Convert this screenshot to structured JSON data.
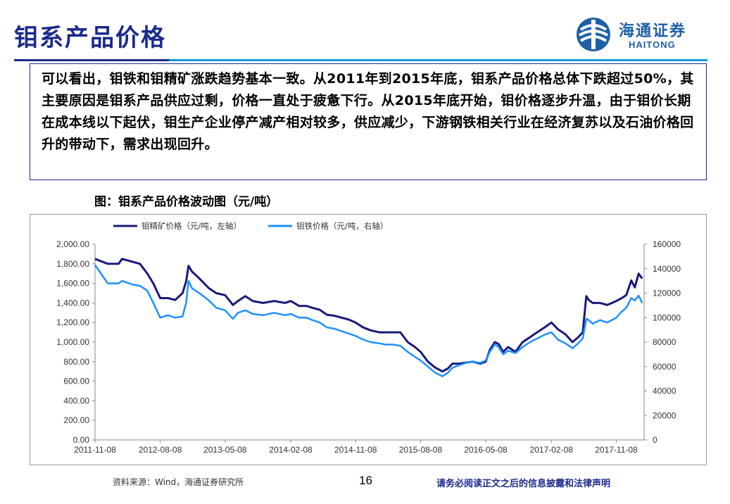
{
  "slide": {
    "title": "钼系产品价格",
    "summary": "可以看出，钼铁和钼精矿涨跌趋势基本一致。从2011年到2015年底，钼系产品价格总体下跌超过50%，其主要原因是钼系产品供应过剩，价格一直处于疲惫下行。从2015年底开始，钼价格逐步升温，由于钼价长期在成本线以下起伏，钼生产企业停产减产相对较多，供应减少，下游钢铁相关行业在经济复苏以及石油价格回升的带动下，需求出现回升。",
    "figure_caption": "图：钼系产品价格波动图（元/吨）",
    "source": "资料来源：Wind，海通证券研究所",
    "page_number": "16",
    "disclaimer": "请务必阅读正文之后的信息披露和法律声明"
  },
  "logo": {
    "cn": "海通证券",
    "en": "HAITONG"
  },
  "colors": {
    "title": "#1a2a8c",
    "accent": "#0f9ad8",
    "series_concentrate": "#1a1a7a",
    "series_ferro": "#1e90ff"
  },
  "chart_data": {
    "type": "line",
    "title": "",
    "xlabel": "",
    "x_tick_labels": [
      "2011-11-08",
      "2012-08-08",
      "2013-05-08",
      "2014-02-08",
      "2014-11-08",
      "2015-08-08",
      "2016-05-08",
      "2017-02-08",
      "2017-11-08"
    ],
    "y_left": {
      "ylim": [
        0,
        2000
      ],
      "ticks": [
        "0.00",
        "200.00",
        "400.00",
        "600.00",
        "800.00",
        "1,000.00",
        "1,200.00",
        "1,400.00",
        "1,600.00",
        "1,800.00",
        "2,000.00"
      ]
    },
    "y_right": {
      "ylim": [
        0,
        160000
      ],
      "ticks": [
        "0",
        "20000",
        "40000",
        "60000",
        "80000",
        "100000",
        "120000",
        "140000",
        "160000"
      ]
    },
    "grid": false,
    "legend_position": "top-left",
    "series": [
      {
        "name": "钼精矿价格（元/吨，左轴）",
        "axis": "left",
        "x": [
          "2011-11-08",
          "2012-01-01",
          "2012-02-15",
          "2012-03-01",
          "2012-04-15",
          "2012-05-15",
          "2012-06-15",
          "2012-07-10",
          "2012-08-08",
          "2012-09-10",
          "2012-10-10",
          "2012-11-10",
          "2012-11-25",
          "2012-12-05",
          "2012-12-20",
          "2013-01-20",
          "2013-03-01",
          "2013-04-01",
          "2013-05-08",
          "2013-06-10",
          "2013-07-01",
          "2013-08-01",
          "2013-09-01",
          "2013-10-15",
          "2013-12-01",
          "2014-01-15",
          "2014-02-08",
          "2014-03-15",
          "2014-04-15",
          "2014-05-10",
          "2014-06-10",
          "2014-07-10",
          "2014-08-10",
          "2014-09-10",
          "2014-10-10",
          "2014-11-08",
          "2014-12-10",
          "2015-01-10",
          "2015-02-15",
          "2015-03-15",
          "2015-04-15",
          "2015-05-15",
          "2015-06-15",
          "2015-07-15",
          "2015-08-08",
          "2015-09-08",
          "2015-10-08",
          "2015-11-08",
          "2015-12-01",
          "2015-12-20",
          "2016-01-15",
          "2016-02-15",
          "2016-03-15",
          "2016-04-15",
          "2016-05-08",
          "2016-05-25",
          "2016-06-15",
          "2016-07-01",
          "2016-07-20",
          "2016-08-10",
          "2016-09-10",
          "2016-10-10",
          "2016-11-10",
          "2016-12-10",
          "2017-01-10",
          "2017-02-08",
          "2017-03-08",
          "2017-04-08",
          "2017-05-08",
          "2017-06-01",
          "2017-06-20",
          "2017-07-05",
          "2017-07-15",
          "2017-08-01",
          "2017-09-01",
          "2017-10-01",
          "2017-11-08",
          "2017-12-01",
          "2017-12-20",
          "2018-01-10",
          "2018-01-25",
          "2018-02-10",
          "2018-02-25"
        ],
        "values": [
          1850,
          1800,
          1800,
          1850,
          1820,
          1800,
          1700,
          1600,
          1450,
          1450,
          1430,
          1500,
          1620,
          1780,
          1720,
          1650,
          1550,
          1500,
          1480,
          1380,
          1420,
          1470,
          1420,
          1400,
          1420,
          1400,
          1420,
          1370,
          1370,
          1350,
          1330,
          1280,
          1270,
          1250,
          1230,
          1200,
          1150,
          1120,
          1100,
          1100,
          1100,
          1100,
          1000,
          950,
          900,
          800,
          740,
          700,
          730,
          780,
          780,
          790,
          800,
          780,
          800,
          920,
          1000,
          980,
          900,
          950,
          900,
          1000,
          1050,
          1100,
          1150,
          1200,
          1130,
          1080,
          1000,
          1050,
          1100,
          1470,
          1430,
          1400,
          1400,
          1380,
          1420,
          1450,
          1480,
          1630,
          1560,
          1700,
          1650
        ]
      },
      {
        "name": "钼铁价格（元/吨，右轴）",
        "axis": "right",
        "x": [
          "2011-11-08",
          "2012-01-01",
          "2012-02-15",
          "2012-03-01",
          "2012-04-15",
          "2012-05-15",
          "2012-06-15",
          "2012-07-10",
          "2012-08-08",
          "2012-09-10",
          "2012-10-10",
          "2012-11-10",
          "2012-11-25",
          "2012-12-05",
          "2012-12-20",
          "2013-01-20",
          "2013-03-01",
          "2013-04-01",
          "2013-05-08",
          "2013-06-10",
          "2013-07-01",
          "2013-08-01",
          "2013-09-01",
          "2013-10-15",
          "2013-12-01",
          "2014-01-15",
          "2014-02-08",
          "2014-03-15",
          "2014-04-15",
          "2014-05-10",
          "2014-06-10",
          "2014-07-10",
          "2014-08-10",
          "2014-09-10",
          "2014-10-10",
          "2014-11-08",
          "2014-12-10",
          "2015-01-10",
          "2015-02-15",
          "2015-03-15",
          "2015-04-15",
          "2015-05-15",
          "2015-06-15",
          "2015-07-15",
          "2015-08-08",
          "2015-09-08",
          "2015-10-08",
          "2015-11-08",
          "2015-12-01",
          "2015-12-20",
          "2016-01-15",
          "2016-02-15",
          "2016-03-15",
          "2016-04-15",
          "2016-05-08",
          "2016-05-25",
          "2016-06-15",
          "2016-07-01",
          "2016-07-20",
          "2016-08-10",
          "2016-09-10",
          "2016-10-10",
          "2016-11-10",
          "2016-12-10",
          "2017-01-10",
          "2017-02-08",
          "2017-03-08",
          "2017-04-08",
          "2017-05-08",
          "2017-06-01",
          "2017-06-20",
          "2017-07-05",
          "2017-07-15",
          "2017-08-01",
          "2017-09-01",
          "2017-10-01",
          "2017-11-08",
          "2017-12-01",
          "2017-12-20",
          "2018-01-10",
          "2018-01-25",
          "2018-02-10",
          "2018-02-25"
        ],
        "values": [
          143000,
          128000,
          128000,
          130000,
          127000,
          126000,
          122000,
          112000,
          100000,
          102000,
          100000,
          101000,
          112000,
          130000,
          124000,
          120000,
          114000,
          108000,
          106000,
          99000,
          104000,
          106000,
          103000,
          102000,
          104000,
          102000,
          103000,
          100000,
          100000,
          98000,
          96000,
          92000,
          91000,
          89000,
          87000,
          85000,
          82000,
          80000,
          79000,
          78000,
          78000,
          77000,
          72000,
          68000,
          65000,
          60000,
          55000,
          52000,
          55000,
          59000,
          61000,
          63000,
          64000,
          63000,
          65000,
          72000,
          78000,
          76000,
          70000,
          73000,
          71000,
          76000,
          80000,
          83000,
          86000,
          88000,
          82000,
          79000,
          75000,
          79000,
          83000,
          99000,
          98000,
          95000,
          98000,
          96000,
          100000,
          105000,
          108000,
          116000,
          114000,
          118000,
          112000
        ]
      }
    ]
  }
}
